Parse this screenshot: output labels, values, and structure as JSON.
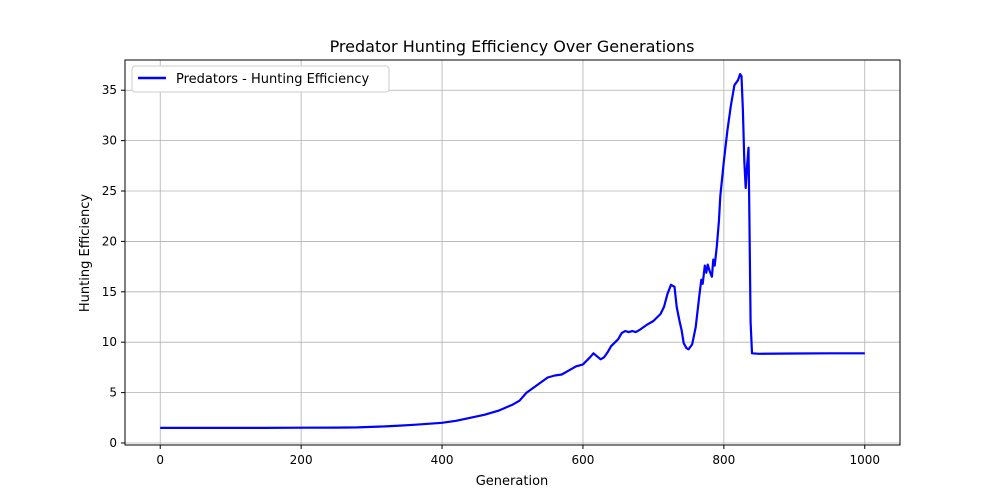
{
  "chart_data": {
    "type": "line",
    "title": "Predator Hunting Efficiency Over Generations",
    "xlabel": "Generation",
    "ylabel": "Hunting Efficiency",
    "xlim": [
      -50,
      1050
    ],
    "ylim": [
      -0.2,
      38.0
    ],
    "xticks": [
      0,
      200,
      400,
      600,
      800,
      1000
    ],
    "yticks": [
      0,
      5,
      10,
      15,
      20,
      25,
      30,
      35
    ],
    "grid": true,
    "legend": {
      "position": "top-left"
    },
    "series": [
      {
        "name": "Predators - Hunting Efficiency",
        "color": "#0000ff",
        "x": [
          0,
          50,
          100,
          150,
          200,
          250,
          280,
          300,
          320,
          340,
          360,
          380,
          400,
          420,
          440,
          460,
          480,
          500,
          510,
          520,
          530,
          540,
          550,
          560,
          570,
          580,
          590,
          600,
          610,
          615,
          620,
          625,
          630,
          635,
          640,
          650,
          655,
          660,
          665,
          670,
          675,
          680,
          690,
          700,
          710,
          715,
          720,
          725,
          730,
          733,
          737,
          740,
          743,
          747,
          750,
          755,
          760,
          765,
          768,
          770,
          773,
          775,
          777,
          780,
          783,
          785,
          787,
          790,
          793,
          795,
          800,
          805,
          810,
          815,
          820,
          823,
          825,
          827,
          829,
          831,
          833,
          835,
          836,
          838,
          840,
          850,
          900,
          950,
          1000
        ],
        "y": [
          1.5,
          1.5,
          1.5,
          1.5,
          1.52,
          1.53,
          1.55,
          1.6,
          1.65,
          1.72,
          1.8,
          1.9,
          2.0,
          2.2,
          2.5,
          2.8,
          3.2,
          3.8,
          4.2,
          5.0,
          5.5,
          6.0,
          6.5,
          6.7,
          6.8,
          7.2,
          7.6,
          7.8,
          8.5,
          8.9,
          8.6,
          8.3,
          8.5,
          9.0,
          9.6,
          10.3,
          10.9,
          11.1,
          11.0,
          11.1,
          11.0,
          11.2,
          11.7,
          12.1,
          12.8,
          13.5,
          14.8,
          15.7,
          15.5,
          13.5,
          12.1,
          11.2,
          9.9,
          9.4,
          9.3,
          9.8,
          11.5,
          14.5,
          16.2,
          15.8,
          17.6,
          16.9,
          17.7,
          17.0,
          16.5,
          18.2,
          17.6,
          19.5,
          22.0,
          24.5,
          28.0,
          31.0,
          33.5,
          35.5,
          36.0,
          36.6,
          36.4,
          33.0,
          28.0,
          25.3,
          27.5,
          29.3,
          24.0,
          12.0,
          8.9,
          8.85,
          8.88,
          8.9,
          8.9
        ]
      }
    ]
  }
}
